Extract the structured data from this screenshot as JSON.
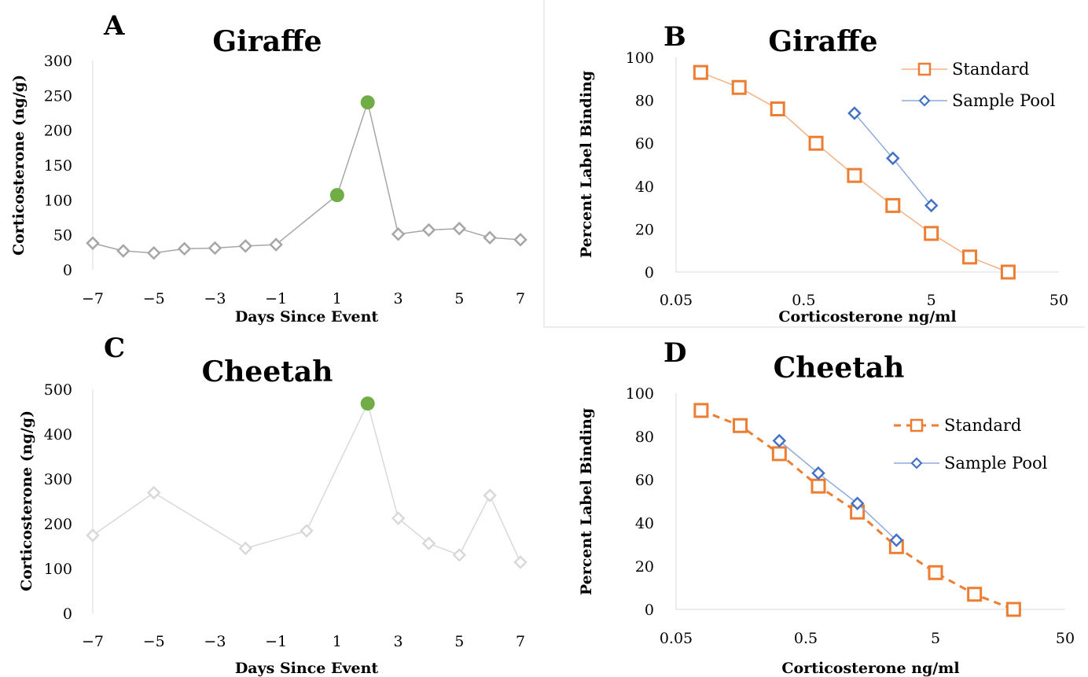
{
  "chart_data": [
    {
      "panel": "A",
      "type": "line",
      "title": "Giraffe",
      "xlabel": "Days Since Event",
      "ylabel": "Corticosterone (ng/g)",
      "xlim": [
        -7,
        7
      ],
      "ylim": [
        0,
        300
      ],
      "xticks": [
        "−7",
        "−5",
        "−3",
        "−1",
        "1",
        "3",
        "5",
        "7"
      ],
      "yticks": [
        "0",
        "50",
        "100",
        "150",
        "200",
        "250",
        "300"
      ],
      "series": [
        {
          "x": [
            -7,
            -6,
            -5,
            -4,
            -3,
            -2,
            -1,
            1,
            2,
            3,
            4,
            5,
            6,
            7
          ],
          "values": [
            38,
            27,
            24,
            30,
            31,
            34,
            36,
            107,
            240,
            51,
            57,
            59,
            46,
            43
          ],
          "highlight_x": [
            1,
            2
          ],
          "marker": "diamond",
          "color": "#a6a6a6",
          "highlight_color": "#70ad47"
        }
      ]
    },
    {
      "panel": "B",
      "type": "line",
      "title": "Giraffe",
      "xlabel": "Corticosterone ng/ml",
      "ylabel": "Percent Label Binding",
      "xscale": "log",
      "xlim": [
        0.05,
        50
      ],
      "ylim": [
        0,
        100
      ],
      "xticks": [
        "0.05",
        "0.5",
        "5",
        "50"
      ],
      "yticks": [
        "0",
        "20",
        "40",
        "60",
        "80",
        "100"
      ],
      "legend_position": "top-right",
      "series": [
        {
          "name": "Standard",
          "x": [
            0.078,
            0.156,
            0.3125,
            0.625,
            1.25,
            2.5,
            5,
            10,
            20
          ],
          "values": [
            93,
            86,
            76,
            60,
            45,
            31,
            18,
            7,
            0
          ],
          "marker": "square",
          "color": "#ed7d31",
          "dashed": false
        },
        {
          "name": "Sample Pool",
          "x": [
            1.25,
            2.5,
            5
          ],
          "values": [
            74,
            53,
            31
          ],
          "marker": "diamond",
          "color": "#4472c4",
          "dashed": false
        }
      ]
    },
    {
      "panel": "C",
      "type": "line",
      "title": "Cheetah",
      "xlabel": "Days Since Event",
      "ylabel": "Corticosterone (ng/g)",
      "xlim": [
        -7,
        7
      ],
      "ylim": [
        0,
        500
      ],
      "xticks": [
        "−7",
        "−5",
        "−3",
        "−1",
        "1",
        "3",
        "5",
        "7"
      ],
      "yticks": [
        "0",
        "100",
        "200",
        "300",
        "400",
        "500"
      ],
      "series": [
        {
          "x": [
            -7,
            -5,
            -2,
            0,
            2,
            3,
            4,
            5,
            6,
            7
          ],
          "values": [
            174,
            269,
            145,
            184,
            468,
            212,
            156,
            130,
            263,
            114
          ],
          "highlight_x": [
            2
          ],
          "marker": "diamond",
          "color": "#d9d9d9",
          "highlight_color": "#70ad47"
        }
      ]
    },
    {
      "panel": "D",
      "type": "line",
      "title": "Cheetah",
      "xlabel": "Corticosterone ng/ml",
      "ylabel": "Percent Label Binding",
      "xscale": "log",
      "xlim": [
        0.05,
        50
      ],
      "ylim": [
        0,
        100
      ],
      "xticks": [
        "0.05",
        "0.5",
        "5",
        "50"
      ],
      "yticks": [
        "0",
        "20",
        "40",
        "60",
        "80",
        "100"
      ],
      "legend_position": "top-right",
      "series": [
        {
          "name": "Standard",
          "x": [
            0.078,
            0.156,
            0.3125,
            0.625,
            1.25,
            2.5,
            5,
            10,
            20
          ],
          "values": [
            92,
            85,
            72,
            57,
            45,
            29,
            17,
            7,
            0
          ],
          "marker": "square",
          "color": "#ed7d31",
          "dashed": true
        },
        {
          "name": "Sample Pool",
          "x": [
            0.3125,
            0.625,
            1.25,
            2.5
          ],
          "values": [
            78,
            63,
            49,
            32
          ],
          "marker": "diamond",
          "color": "#4472c4",
          "dashed": false
        }
      ]
    }
  ]
}
